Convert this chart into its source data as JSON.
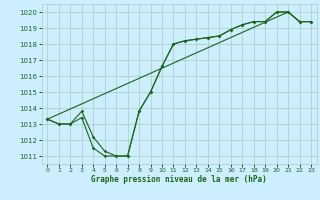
{
  "title": "Graphe pression niveau de la mer (hPa)",
  "bg_color": "#cceeff",
  "grid_color": "#aaccbb",
  "line_color": "#1a6618",
  "ylim": [
    1010.5,
    1020.5
  ],
  "xlim": [
    -0.5,
    23.5
  ],
  "yticks": [
    1011,
    1012,
    1013,
    1014,
    1015,
    1016,
    1017,
    1018,
    1019,
    1020
  ],
  "xticks": [
    0,
    1,
    2,
    3,
    4,
    5,
    6,
    7,
    8,
    9,
    10,
    11,
    12,
    13,
    14,
    15,
    16,
    17,
    18,
    19,
    20,
    21,
    22,
    23
  ],
  "line_main": [
    1013.3,
    1013.0,
    1013.0,
    1013.4,
    1011.5,
    1011.0,
    1011.0,
    1011.0,
    1013.8,
    1015.0,
    1016.6,
    1018.0,
    1018.2,
    1018.3,
    1018.4,
    1018.5,
    1018.9,
    1019.2,
    1019.4,
    1019.4,
    1020.0,
    1020.0,
    1019.4,
    1019.4
  ],
  "line_alt": [
    1013.3,
    1013.0,
    1013.0,
    1013.8,
    1012.2,
    1011.3,
    1011.0,
    1011.0,
    1013.8,
    1015.0,
    1016.6,
    1018.0,
    1018.2,
    1018.3,
    1018.4,
    1018.5,
    1018.9,
    1019.2,
    1019.4,
    1019.4,
    1020.0,
    1020.0,
    1019.4,
    1019.4
  ],
  "trend_x": [
    0,
    21,
    22,
    23
  ],
  "trend_y": [
    1013.3,
    1020.0,
    1019.4,
    1019.4
  ],
  "figsize": [
    3.2,
    2.0
  ],
  "dpi": 100
}
